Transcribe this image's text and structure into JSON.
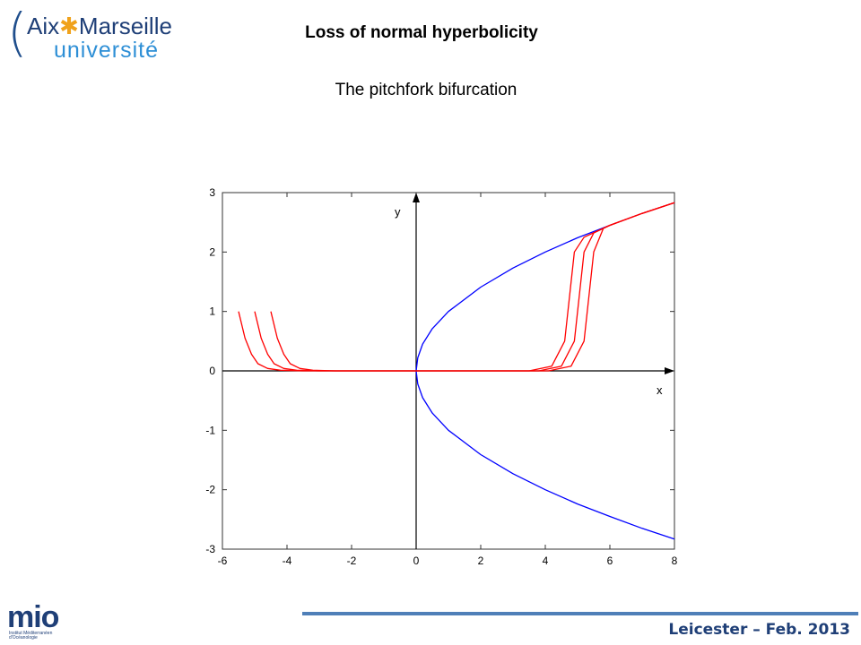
{
  "header": {
    "logo_word1": "Aix",
    "logo_star": "✱",
    "logo_word2": "Marseille",
    "logo_line2": "université",
    "title": "Loss of normal hyperbolicity",
    "subtitle": "The pitchfork bifurcation"
  },
  "footer": {
    "text": "Leicester – Feb. 2013",
    "logo_text": "mio",
    "logo_small": "Institut Méditerranéen d'Océanologie",
    "line_color": "#4f7fb8"
  },
  "chart_data": {
    "type": "line",
    "title": "",
    "xlabel": "x",
    "ylabel": "y",
    "xlim": [
      -6,
      8
    ],
    "ylim": [
      -3,
      3
    ],
    "xticks": [
      -6,
      -4,
      -2,
      0,
      2,
      4,
      6,
      8
    ],
    "yticks": [
      -3,
      -2,
      -1,
      0,
      1,
      2,
      3
    ],
    "grid": false,
    "series": [
      {
        "color": "#0000ff",
        "x": [
          0,
          0.05,
          0.2,
          0.5,
          1,
          2,
          3,
          4,
          5,
          6,
          7,
          8
        ],
        "y": [
          0,
          0.22,
          0.45,
          0.71,
          1.0,
          1.41,
          1.73,
          2.0,
          2.24,
          2.45,
          2.65,
          2.83
        ]
      },
      {
        "color": "#0000ff",
        "x": [
          0,
          0.05,
          0.2,
          0.5,
          1,
          2,
          3,
          4,
          5,
          6,
          7,
          8
        ],
        "y": [
          0,
          -0.22,
          -0.45,
          -0.71,
          -1.0,
          -1.41,
          -1.73,
          -2.0,
          -2.24,
          -2.45,
          -2.65,
          -2.83
        ]
      },
      {
        "color": "#ff0000",
        "x": [
          -5.5,
          -5.3,
          -5.1,
          -4.9,
          -4.6,
          -4.2,
          -3.5,
          0,
          3.5,
          4.2,
          4.6,
          4.9,
          5.2,
          5.6,
          6,
          7,
          8
        ],
        "y": [
          1.0,
          0.55,
          0.28,
          0.12,
          0.04,
          0.01,
          0.0,
          0.0,
          0.0,
          0.08,
          0.5,
          2.0,
          2.25,
          2.35,
          2.45,
          2.65,
          2.83
        ]
      },
      {
        "color": "#ff0000",
        "x": [
          -5.0,
          -4.8,
          -4.6,
          -4.4,
          -4.1,
          -3.7,
          -3.0,
          0,
          3.8,
          4.5,
          4.9,
          5.2,
          5.5,
          6,
          7,
          8
        ],
        "y": [
          1.0,
          0.55,
          0.28,
          0.12,
          0.04,
          0.01,
          0.0,
          0.0,
          0.0,
          0.08,
          0.5,
          2.0,
          2.32,
          2.45,
          2.65,
          2.83
        ]
      },
      {
        "color": "#ff0000",
        "x": [
          -4.5,
          -4.3,
          -4.1,
          -3.9,
          -3.6,
          -3.2,
          -2.5,
          0,
          4.1,
          4.8,
          5.2,
          5.5,
          5.8,
          6,
          7,
          8
        ],
        "y": [
          1.0,
          0.55,
          0.28,
          0.12,
          0.04,
          0.01,
          0.0,
          0.0,
          0.0,
          0.08,
          0.5,
          2.0,
          2.4,
          2.45,
          2.65,
          2.83
        ]
      }
    ]
  }
}
